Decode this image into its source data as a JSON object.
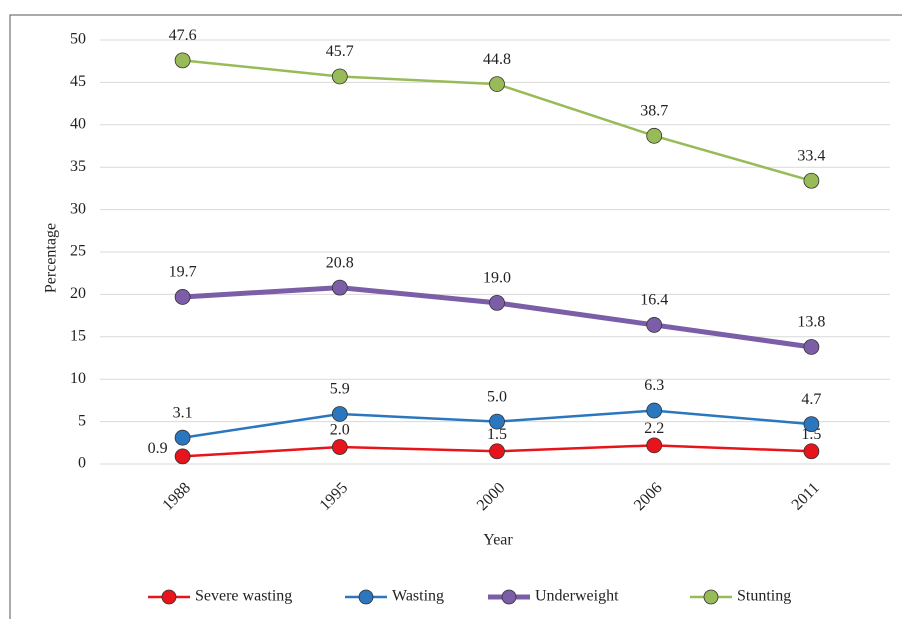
{
  "chart_data": {
    "type": "line",
    "x_label": "Year",
    "y_label": "Percentage",
    "categories": [
      "1988",
      "1995",
      "2000",
      "2006",
      "2011"
    ],
    "series": [
      {
        "name": "Severe wasting",
        "color": "#e8141b",
        "line_width": 2.5,
        "values": [
          0.9,
          2.0,
          1.5,
          2.2,
          1.5
        ],
        "value_labels": [
          "0.9",
          "2.0",
          "1.5",
          "2.2",
          "1.5"
        ]
      },
      {
        "name": "Wasting",
        "color": "#2a77bf",
        "line_width": 2.5,
        "values": [
          3.1,
          5.9,
          5.0,
          6.3,
          4.7
        ],
        "value_labels": [
          "3.1",
          "5.9",
          "5.0",
          "6.3",
          "4.7"
        ]
      },
      {
        "name": "Underweight",
        "color": "#7b5ea7",
        "line_width": 5,
        "values": [
          19.7,
          20.8,
          19.0,
          16.4,
          13.8
        ],
        "value_labels": [
          "19.7",
          "20.8",
          "19.0",
          "16.4",
          "13.8"
        ]
      },
      {
        "name": "Stunting",
        "color": "#98bb58",
        "line_width": 2.5,
        "values": [
          47.6,
          45.7,
          44.8,
          38.7,
          33.4
        ],
        "value_labels": [
          "47.6",
          "45.7",
          "44.8",
          "38.7",
          "33.4"
        ]
      }
    ],
    "ylim": [
      0,
      50
    ],
    "yticks": [
      0,
      5,
      10,
      15,
      20,
      25,
      30,
      35,
      40,
      45,
      50
    ],
    "grid": true,
    "legend": "bottom"
  }
}
